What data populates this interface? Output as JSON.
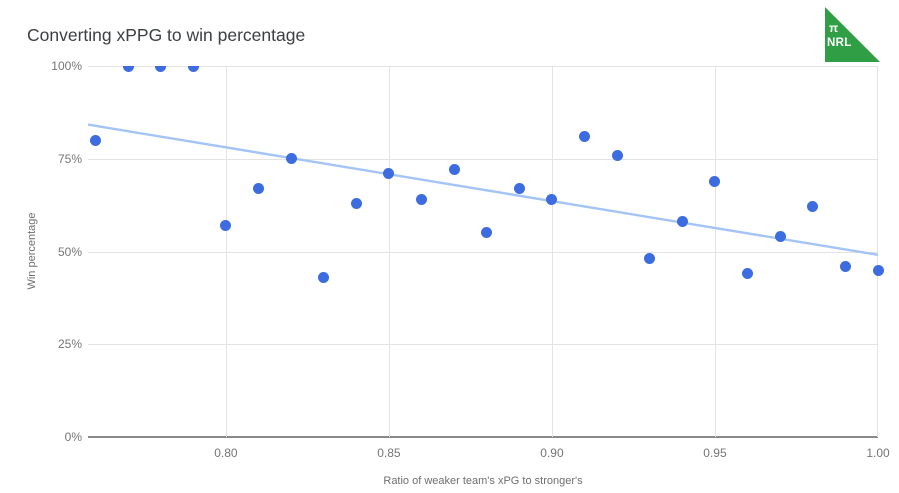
{
  "title": "Converting xPPG to win percentage",
  "logo": {
    "pi_symbol": "π",
    "text": "NRL",
    "color": "#2f9e44"
  },
  "chart_data": {
    "type": "scatter",
    "title": "Converting xPPG to win percentage",
    "xlabel": "Ratio of weaker team's xPG to stronger's",
    "ylabel": "Win percentage",
    "xlim": [
      0.7577,
      1.0
    ],
    "ylim": [
      0,
      100
    ],
    "x_ticks": [
      0.8,
      0.85,
      0.9,
      0.95,
      1.0
    ],
    "x_tick_labels": [
      "0.80",
      "0.85",
      "0.90",
      "0.95",
      "1.00"
    ],
    "y_ticks": [
      0,
      25,
      50,
      75,
      100
    ],
    "y_tick_labels": [
      "0%",
      "25%",
      "50%",
      "75%",
      "100%"
    ],
    "grid": true,
    "legend": "none",
    "point_color": "#3c6ce0",
    "trend_color": "#a3c4f5",
    "points": [
      {
        "x": 0.76,
        "y": 80
      },
      {
        "x": 0.77,
        "y": 100
      },
      {
        "x": 0.78,
        "y": 100
      },
      {
        "x": 0.79,
        "y": 100
      },
      {
        "x": 0.8,
        "y": 57
      },
      {
        "x": 0.81,
        "y": 67
      },
      {
        "x": 0.82,
        "y": 75
      },
      {
        "x": 0.83,
        "y": 43
      },
      {
        "x": 0.84,
        "y": 63
      },
      {
        "x": 0.85,
        "y": 71
      },
      {
        "x": 0.86,
        "y": 64
      },
      {
        "x": 0.87,
        "y": 72
      },
      {
        "x": 0.88,
        "y": 55
      },
      {
        "x": 0.89,
        "y": 67
      },
      {
        "x": 0.9,
        "y": 64
      },
      {
        "x": 0.91,
        "y": 81
      },
      {
        "x": 0.92,
        "y": 76
      },
      {
        "x": 0.93,
        "y": 48
      },
      {
        "x": 0.94,
        "y": 58
      },
      {
        "x": 0.95,
        "y": 69
      },
      {
        "x": 0.96,
        "y": 44
      },
      {
        "x": 0.97,
        "y": 54
      },
      {
        "x": 0.98,
        "y": 62
      },
      {
        "x": 0.99,
        "y": 46
      },
      {
        "x": 1.0,
        "y": 45
      }
    ],
    "trend_line": {
      "x1": 0.7577,
      "y1": 84.2,
      "x2": 1.0,
      "y2": 49.1
    }
  }
}
